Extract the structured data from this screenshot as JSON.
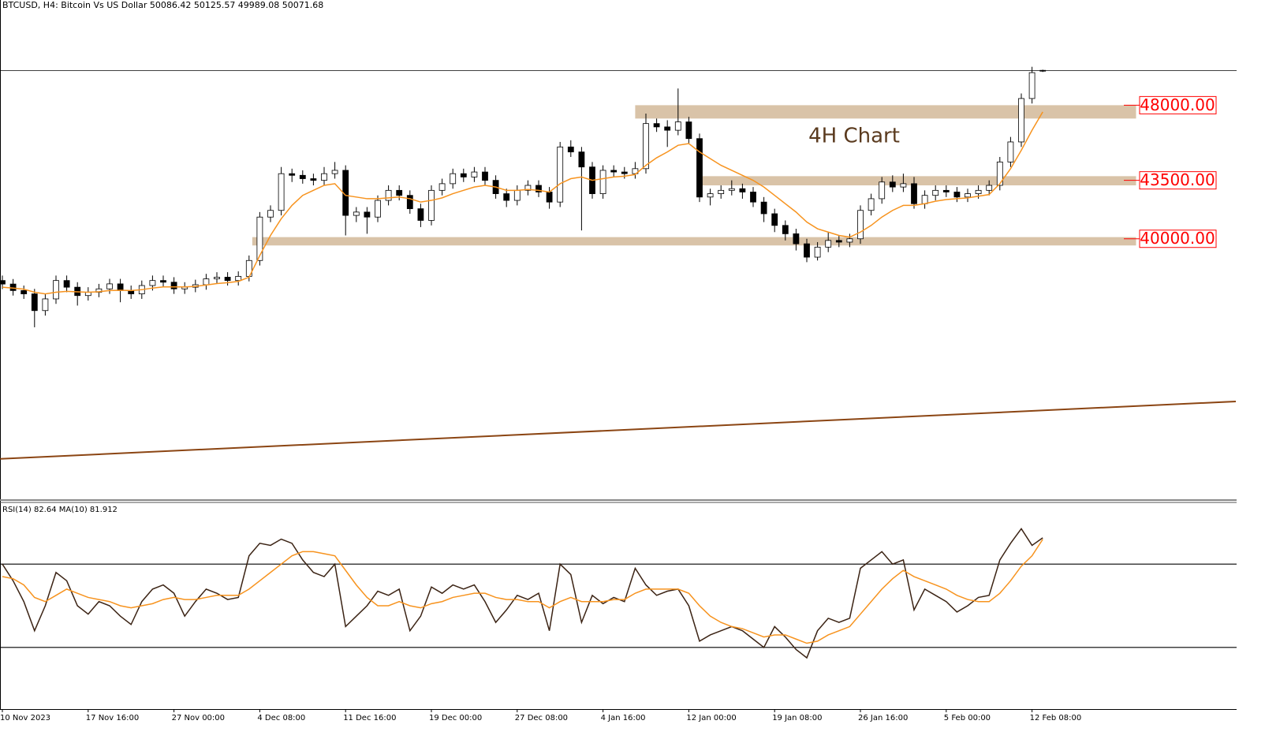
{
  "chart_data": [
    {
      "type": "candlestick",
      "title": "BTCUSD, H4:  Bitcoin Vs US Dollar  50086.42 50125.57 49989.08 50071.68",
      "annotation": "4H Chart",
      "categories": [
        "10 Nov 2023",
        null,
        null,
        null,
        null,
        null,
        null,
        null,
        "17 Nov 16:00",
        null,
        null,
        null,
        null,
        null,
        null,
        null,
        "27 Nov 00:00",
        null,
        null,
        null,
        null,
        null,
        null,
        null,
        "4 Dec 08:00",
        null,
        null,
        null,
        null,
        null,
        null,
        null,
        "11 Dec 16:00",
        null,
        null,
        null,
        null,
        null,
        null,
        null,
        "19 Dec 00:00",
        null,
        null,
        null,
        null,
        null,
        null,
        null,
        "27 Dec 08:00",
        null,
        null,
        null,
        null,
        null,
        null,
        null,
        "4 Jan 16:00",
        null,
        null,
        null,
        null,
        null,
        null,
        null,
        "12 Jan 00:00",
        null,
        null,
        null,
        null,
        null,
        null,
        null,
        "19 Jan 08:00",
        null,
        null,
        null,
        null,
        null,
        null,
        null,
        "26 Jan 16:00",
        null,
        null,
        null,
        null,
        null,
        null,
        null,
        "5 Feb 00:00",
        null,
        null,
        null,
        null,
        null,
        null,
        null,
        "12 Feb 08:00",
        null
      ],
      "open": [
        37500,
        37290,
        36900,
        36700,
        35700,
        36400,
        37500,
        37100,
        36600,
        36800,
        37000,
        37300,
        36900,
        36700,
        37200,
        37500,
        37400,
        37000,
        37100,
        37250,
        37600,
        37700,
        37500,
        37750,
        38700,
        41300,
        41700,
        43900,
        43800,
        43600,
        43500,
        43900,
        44100,
        41400,
        41600,
        41300,
        42300,
        42900,
        42600,
        41800,
        41100,
        42900,
        43300,
        43900,
        43700,
        44000,
        43500,
        42700,
        42300,
        42900,
        43200,
        42800,
        42200,
        45500,
        45200,
        44300,
        42700,
        44100,
        44000,
        43900,
        44200,
        46900,
        46700,
        46500,
        47000,
        46000,
        42500,
        42700,
        42900,
        43000,
        42800,
        42200,
        41500,
        40800,
        40300,
        39700,
        38900,
        39500,
        39900,
        39800,
        40000,
        41700,
        42400,
        43400,
        43100,
        43300,
        42100,
        42600,
        42900,
        42800,
        42500,
        42700,
        42900,
        43200,
        44600,
        45800,
        48400,
        50086.42
      ],
      "high": [
        37800,
        37590,
        37200,
        37000,
        36700,
        37800,
        37800,
        37400,
        37100,
        37300,
        37600,
        37600,
        37200,
        37500,
        37800,
        37800,
        37700,
        37400,
        37550,
        37900,
        38000,
        38000,
        38050,
        39000,
        41600,
        42000,
        44300,
        44200,
        44100,
        43900,
        44300,
        44600,
        44400,
        41900,
        41900,
        42600,
        43200,
        43200,
        42900,
        42100,
        43200,
        43600,
        44200,
        44200,
        44300,
        44300,
        43800,
        43000,
        43200,
        43500,
        43500,
        43100,
        45800,
        45900,
        45500,
        44600,
        44400,
        44400,
        44300,
        44600,
        47500,
        47200,
        47100,
        49000,
        47300,
        46300,
        43000,
        43200,
        43500,
        43300,
        43100,
        42500,
        41800,
        41100,
        40600,
        40000,
        39800,
        40400,
        40200,
        40300,
        42000,
        42700,
        43700,
        43800,
        43900,
        43700,
        42900,
        43200,
        43200,
        43100,
        43000,
        43200,
        43500,
        44900,
        46100,
        48700,
        50300,
        50125.57
      ],
      "low": [
        36990,
        36600,
        36400,
        34700,
        35400,
        36100,
        36800,
        36000,
        36300,
        36500,
        36700,
        36200,
        36400,
        36400,
        36900,
        37100,
        36700,
        36700,
        36800,
        36950,
        37300,
        37200,
        37200,
        37450,
        38400,
        41000,
        41400,
        43400,
        43300,
        43200,
        43200,
        43600,
        40200,
        41000,
        40300,
        41000,
        42000,
        42300,
        41500,
        40700,
        40800,
        42600,
        43000,
        43400,
        43400,
        43200,
        42400,
        41900,
        42000,
        42600,
        42500,
        41800,
        41900,
        44900,
        40500,
        42400,
        42400,
        43700,
        43600,
        43600,
        43900,
        46400,
        45500,
        46200,
        45700,
        42200,
        42000,
        42400,
        42600,
        42400,
        41900,
        41000,
        40400,
        39900,
        39300,
        38600,
        38700,
        39200,
        39500,
        39500,
        39700,
        41400,
        42100,
        42800,
        42800,
        41800,
        41800,
        42300,
        42500,
        42200,
        42200,
        42400,
        42600,
        42900,
        44300,
        45500,
        48100,
        49989.08
      ],
      "close": [
        37290,
        36900,
        36700,
        35700,
        36400,
        37500,
        37100,
        36600,
        36800,
        37000,
        37300,
        36900,
        36700,
        37200,
        37500,
        37400,
        37000,
        37100,
        37250,
        37600,
        37700,
        37500,
        37750,
        38700,
        41300,
        41700,
        43900,
        43800,
        43600,
        43500,
        43900,
        44100,
        41400,
        41600,
        41300,
        42300,
        42900,
        42600,
        41800,
        41100,
        42900,
        43300,
        43900,
        43700,
        44000,
        43500,
        42700,
        42300,
        42900,
        43200,
        42800,
        42200,
        45500,
        45200,
        44300,
        42700,
        44100,
        44000,
        43900,
        44200,
        46900,
        46700,
        46500,
        47000,
        46000,
        42500,
        42700,
        42900,
        43000,
        42800,
        42200,
        41500,
        40800,
        40300,
        39700,
        38900,
        39500,
        39900,
        39800,
        40000,
        41700,
        42400,
        43400,
        43100,
        43300,
        42100,
        42600,
        42900,
        42800,
        42500,
        42700,
        42900,
        43200,
        44600,
        45800,
        48400,
        49950,
        50071.68
      ],
      "up_color": "#ffffff",
      "down_color": "#000000",
      "series": [
        {
          "color": "#f7931e",
          "values": [
            37100,
            37050,
            36980,
            36800,
            36700,
            36800,
            36850,
            36820,
            36800,
            36830,
            36900,
            36920,
            36900,
            36950,
            37050,
            37120,
            37120,
            37120,
            37150,
            37230,
            37320,
            37370,
            37450,
            37700,
            39000,
            40200,
            41200,
            42000,
            42600,
            42900,
            43200,
            43300,
            42600,
            42500,
            42400,
            42400,
            42450,
            42500,
            42400,
            42200,
            42300,
            42450,
            42700,
            42900,
            43100,
            43200,
            43100,
            42900,
            42900,
            42950,
            42900,
            42800,
            43300,
            43600,
            43700,
            43500,
            43600,
            43700,
            43750,
            43850,
            44400,
            44850,
            45200,
            45600,
            45700,
            45200,
            44800,
            44400,
            44100,
            43800,
            43500,
            43100,
            42600,
            42100,
            41600,
            41000,
            40600,
            40400,
            40200,
            40100,
            40400,
            40800,
            41300,
            41700,
            42000,
            42000,
            42100,
            42250,
            42350,
            42400,
            42450,
            42550,
            42650,
            43300,
            44200,
            45300,
            46500,
            47600
          ]
        }
      ],
      "trendline": {
        "color": "#8b4513",
        "x": [
          -0.2,
          115
        ],
        "values": [
          26820,
          30260
        ]
      },
      "zones": [
        {
          "level": {
            "value": 48000,
            "label": "48000.00"
          },
          "range": [
            48000,
            47200
          ],
          "start": 59,
          "end": 105.7
        },
        {
          "level": {
            "value": 43500,
            "label": "43500.00"
          },
          "range": [
            43750,
            43200
          ],
          "start": 65.2,
          "end": 105.7
        },
        {
          "level": {
            "value": 40000,
            "label": "40000.00"
          },
          "range": [
            40100,
            39600
          ],
          "start": 23.3,
          "end": 105.7
        }
      ],
      "zone_color": "#d9c3a8",
      "level_color": "#ff0000",
      "ylim": [
        24400,
        54300
      ]
    },
    {
      "type": "line",
      "title": "RSI(14) 82.64 MA(10) 81.912",
      "ylim": [
        0,
        100
      ],
      "levels": [
        70,
        30
      ],
      "series": [
        {
          "color": "#3b2314",
          "values": [
            70,
            62,
            52,
            38,
            50,
            66,
            62,
            50,
            46,
            52,
            50,
            45,
            41,
            52,
            58,
            60,
            56,
            45,
            52,
            58,
            56,
            53,
            54,
            74,
            80,
            79,
            82,
            80,
            72,
            66,
            64,
            70,
            40,
            45,
            50,
            57,
            55,
            58,
            38,
            45,
            59,
            56,
            60,
            58,
            60,
            52,
            42,
            48,
            55,
            53,
            56,
            38,
            70,
            65,
            42,
            55,
            51,
            54,
            52,
            68,
            60,
            55,
            57,
            58,
            50,
            33,
            36,
            38,
            40,
            38,
            34,
            30,
            40,
            35,
            29,
            25,
            38,
            44,
            42,
            44,
            68,
            72,
            76,
            70,
            72,
            48,
            58,
            55,
            52,
            47,
            50,
            54,
            55,
            72,
            80,
            87,
            79,
            82.64
          ]
        },
        {
          "color": "#f7931e",
          "values": [
            64,
            63,
            60,
            54,
            52,
            55,
            58,
            56,
            54,
            53,
            52,
            50,
            49,
            50,
            51,
            53,
            54,
            53,
            53,
            54,
            55,
            55,
            55,
            58,
            62,
            66,
            70,
            74,
            76,
            76,
            75,
            74,
            67,
            60,
            54,
            50,
            50,
            52,
            50,
            49,
            51,
            52,
            54,
            55,
            56,
            56,
            54,
            53,
            53,
            52,
            52,
            49,
            52,
            54,
            52,
            52,
            52,
            53,
            53,
            56,
            58,
            58,
            58,
            58,
            56,
            50,
            45,
            42,
            40,
            39,
            37,
            35,
            36,
            36,
            34,
            32,
            33,
            36,
            38,
            40,
            46,
            52,
            58,
            63,
            67,
            64,
            62,
            60,
            58,
            55,
            53,
            52,
            52,
            56,
            62,
            69,
            74,
            81.912
          ]
        }
      ]
    }
  ]
}
